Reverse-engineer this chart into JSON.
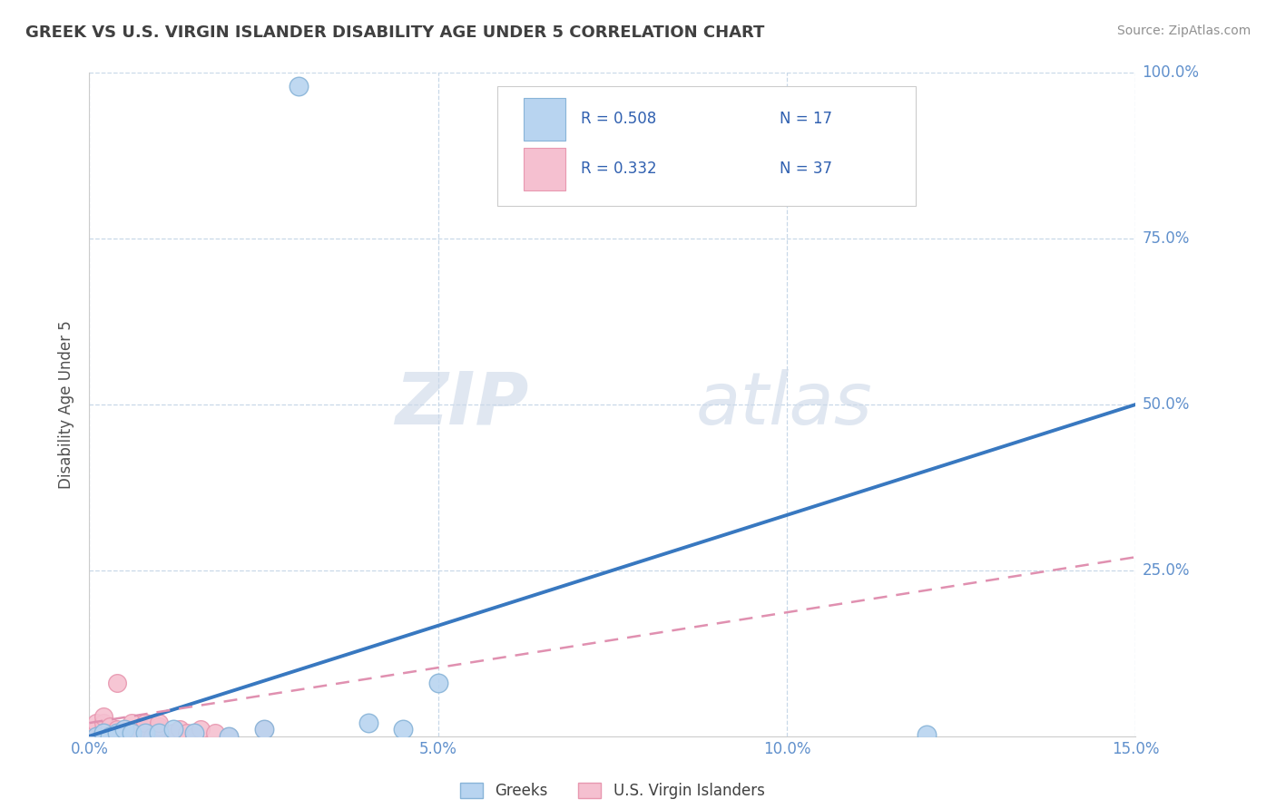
{
  "title": "GREEK VS U.S. VIRGIN ISLANDER DISABILITY AGE UNDER 5 CORRELATION CHART",
  "source": "Source: ZipAtlas.com",
  "ylabel": "Disability Age Under 5",
  "xlabel": "",
  "xlim": [
    0.0,
    0.15
  ],
  "ylim": [
    0.0,
    1.0
  ],
  "xticks": [
    0.0,
    0.05,
    0.1,
    0.15
  ],
  "xtick_labels": [
    "0.0%",
    "5.0%",
    "10.0%",
    "15.0%"
  ],
  "yticks": [
    0.25,
    0.5,
    0.75,
    1.0
  ],
  "ytick_labels": [
    "25.0%",
    "50.0%",
    "75.0%",
    "100.0%"
  ],
  "watermark_zip": "ZIP",
  "watermark_atlas": "atlas",
  "legend_R1": "R = 0.508",
  "legend_N1": "N = 17",
  "legend_R2": "R = 0.332",
  "legend_N2": "N = 37",
  "greek_color": "#b8d4f0",
  "greek_edge_color": "#88b4d8",
  "vi_color": "#f5c0d0",
  "vi_edge_color": "#e898b0",
  "trend_blue_color": "#3878c0",
  "trend_pink_color": "#e090b0",
  "title_color": "#404040",
  "source_color": "#909090",
  "axis_label_color": "#505050",
  "tick_color": "#6090cc",
  "grid_color": "#c8d8e8",
  "legend_text_color": "#3060b0",
  "legend_label_color": "#404040",
  "background_color": "#ffffff",
  "greek_points_x": [
    0.001,
    0.002,
    0.003,
    0.004,
    0.005,
    0.006,
    0.008,
    0.01,
    0.012,
    0.015,
    0.02,
    0.025,
    0.03,
    0.04,
    0.045,
    0.05,
    0.12
  ],
  "greek_points_y": [
    0.0,
    0.005,
    0.0,
    0.005,
    0.01,
    0.005,
    0.005,
    0.005,
    0.01,
    0.005,
    0.0,
    0.01,
    0.98,
    0.02,
    0.01,
    0.08,
    0.003
  ],
  "vi_points_x": [
    0.001,
    0.001,
    0.001,
    0.002,
    0.002,
    0.002,
    0.002,
    0.003,
    0.003,
    0.003,
    0.004,
    0.004,
    0.004,
    0.005,
    0.005,
    0.005,
    0.006,
    0.006,
    0.007,
    0.007,
    0.008,
    0.008,
    0.009,
    0.01,
    0.01,
    0.01,
    0.01,
    0.01,
    0.012,
    0.012,
    0.013,
    0.014,
    0.015,
    0.016,
    0.018,
    0.02,
    0.025
  ],
  "vi_points_y": [
    0.0,
    0.01,
    0.02,
    0.0,
    0.01,
    0.02,
    0.03,
    0.0,
    0.005,
    0.015,
    0.0,
    0.01,
    0.08,
    0.0,
    0.005,
    0.01,
    0.0,
    0.02,
    0.0,
    0.005,
    0.01,
    0.02,
    0.0,
    0.0,
    0.005,
    0.01,
    0.015,
    0.02,
    0.0,
    0.005,
    0.01,
    0.005,
    0.0,
    0.01,
    0.005,
    0.0,
    0.01
  ],
  "greek_trend_x": [
    0.0,
    0.15
  ],
  "greek_trend_y": [
    0.0,
    0.5
  ],
  "vi_trend_x": [
    0.0,
    0.15
  ],
  "vi_trend_y": [
    0.02,
    0.27
  ]
}
